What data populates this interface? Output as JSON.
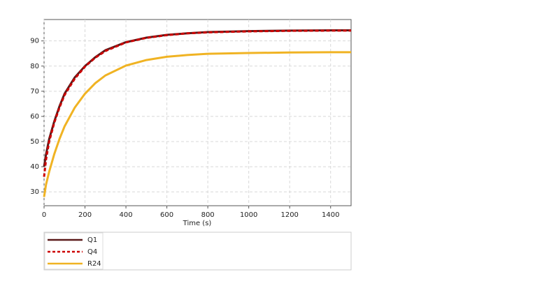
{
  "chart_data": {
    "type": "line",
    "x_label": "Time (s)",
    "x": [
      0,
      10,
      25,
      50,
      75,
      100,
      150,
      200,
      250,
      300,
      400,
      500,
      600,
      700,
      800,
      1000,
      1200,
      1400,
      1500
    ],
    "series": [
      {
        "name": "Q1",
        "color": "#5a1a1a",
        "dash": "solid",
        "values": [
          40,
          45,
          51,
          58,
          64,
          69,
          75.5,
          80,
          83.5,
          86.3,
          89.5,
          91.3,
          92.4,
          93,
          93.5,
          93.9,
          94.1,
          94.2,
          94.2
        ]
      },
      {
        "name": "Q4",
        "color": "#cc0000",
        "dash": "dashed",
        "values": [
          36,
          43,
          50,
          57.5,
          63.5,
          68.5,
          75,
          79.8,
          83.3,
          86,
          89.4,
          91.2,
          92.3,
          93,
          93.4,
          93.8,
          94,
          94.1,
          94.1
        ]
      },
      {
        "name": "R24",
        "color": "#f0b323",
        "dash": "solid",
        "values": [
          28,
          33,
          38,
          45,
          51,
          56,
          63.5,
          69,
          73.2,
          76.3,
          80.2,
          82.4,
          83.7,
          84.4,
          84.9,
          85.2,
          85.4,
          85.5,
          85.5
        ]
      }
    ],
    "xlim": [
      0,
      1500
    ],
    "xticks": [
      0,
      200,
      400,
      600,
      800,
      1000,
      1200,
      1400
    ],
    "ylim": [
      24.5,
      98.5
    ],
    "yticks": [
      30,
      40,
      50,
      60,
      70,
      80,
      90
    ],
    "grid": true,
    "legend": "bottom"
  }
}
